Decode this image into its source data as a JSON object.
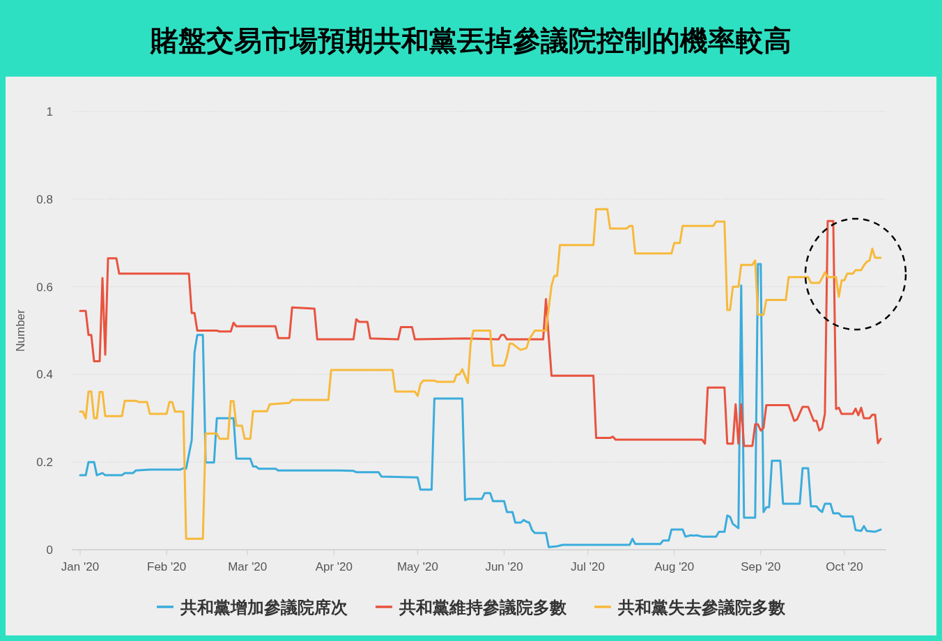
{
  "chart_data": {
    "type": "line",
    "title": "賭盤交易市場預期共和黨丟掉參議院控制的機率較高",
    "ylabel": "Number",
    "xlim": [
      "2019-12-29",
      "2020-10-16"
    ],
    "xticks": [
      {
        "value": "2020-01-01",
        "label": "Jan '20"
      },
      {
        "value": "2020-02-01",
        "label": "Feb '20"
      },
      {
        "value": "2020-03-01",
        "label": "Mar '20"
      },
      {
        "value": "2020-04-01",
        "label": "Apr '20"
      },
      {
        "value": "2020-05-01",
        "label": "May '20"
      },
      {
        "value": "2020-06-01",
        "label": "Jun '20"
      },
      {
        "value": "2020-07-01",
        "label": "Jul '20"
      },
      {
        "value": "2020-08-01",
        "label": "Aug '20"
      },
      {
        "value": "2020-09-01",
        "label": "Sep '20"
      },
      {
        "value": "2020-10-01",
        "label": "Oct '20"
      }
    ],
    "ylim": [
      0,
      1
    ],
    "yticks": [
      0,
      0.2,
      0.4,
      0.6,
      0.8,
      1
    ],
    "grid": "y",
    "legend": "bottom",
    "marker": "none",
    "line_style": "solid",
    "series": [
      {
        "name": "共和黨增加參議院席次",
        "color": "#3aacdc",
        "x": [
          "2020-01-01",
          "2020-01-03",
          "2020-01-04",
          "2020-01-06",
          "2020-01-07",
          "2020-01-09",
          "2020-01-10",
          "2020-01-16",
          "2020-01-17",
          "2020-01-20",
          "2020-01-21",
          "2020-01-26",
          "2020-02-06",
          "2020-02-07",
          "2020-02-08",
          "2020-02-10",
          "2020-02-11",
          "2020-02-12",
          "2020-02-14",
          "2020-02-15",
          "2020-02-18",
          "2020-02-19",
          "2020-02-25",
          "2020-02-26",
          "2020-03-02",
          "2020-03-03",
          "2020-03-04",
          "2020-03-05",
          "2020-03-11",
          "2020-03-12",
          "2020-04-03",
          "2020-04-08",
          "2020-04-09",
          "2020-04-17",
          "2020-04-18",
          "2020-05-01",
          "2020-05-02",
          "2020-05-06",
          "2020-05-07",
          "2020-05-17",
          "2020-05-18",
          "2020-05-19",
          "2020-05-24",
          "2020-05-25",
          "2020-05-27",
          "2020-05-28",
          "2020-06-01",
          "2020-06-02",
          "2020-06-04",
          "2020-06-05",
          "2020-06-07",
          "2020-06-08",
          "2020-06-09",
          "2020-06-10",
          "2020-06-11",
          "2020-06-12",
          "2020-06-16",
          "2020-06-17",
          "2020-06-20",
          "2020-06-22",
          "2020-07-16",
          "2020-07-17",
          "2020-07-18",
          "2020-07-27",
          "2020-07-28",
          "2020-07-30",
          "2020-07-31",
          "2020-08-04",
          "2020-08-05",
          "2020-08-07",
          "2020-08-08",
          "2020-08-09",
          "2020-08-11",
          "2020-08-16",
          "2020-08-17",
          "2020-08-19",
          "2020-08-20",
          "2020-08-21",
          "2020-08-22",
          "2020-08-24",
          "2020-08-25",
          "2020-08-26",
          "2020-08-30",
          "2020-08-31",
          "2020-09-01",
          "2020-09-02",
          "2020-09-03",
          "2020-09-04",
          "2020-09-05",
          "2020-09-08",
          "2020-09-09",
          "2020-09-15",
          "2020-09-16",
          "2020-09-18",
          "2020-09-19",
          "2020-09-21",
          "2020-09-22",
          "2020-09-23",
          "2020-09-24",
          "2020-09-26",
          "2020-09-27",
          "2020-09-29",
          "2020-09-30",
          "2020-10-04",
          "2020-10-05",
          "2020-10-07",
          "2020-10-08",
          "2020-10-09",
          "2020-10-12",
          "2020-10-14"
        ],
        "values": [
          0.17,
          0.17,
          0.2,
          0.2,
          0.17,
          0.175,
          0.17,
          0.17,
          0.175,
          0.175,
          0.181,
          0.183,
          0.183,
          0.186,
          0.185,
          0.25,
          0.45,
          0.49,
          0.49,
          0.199,
          0.199,
          0.3,
          0.3,
          0.208,
          0.208,
          0.19,
          0.19,
          0.185,
          0.185,
          0.181,
          0.181,
          0.18,
          0.177,
          0.177,
          0.167,
          0.165,
          0.137,
          0.137,
          0.345,
          0.345,
          0.113,
          0.116,
          0.116,
          0.129,
          0.129,
          0.111,
          0.111,
          0.086,
          0.086,
          0.062,
          0.062,
          0.068,
          0.064,
          0.062,
          0.045,
          0.038,
          0.038,
          0.006,
          0.008,
          0.011,
          0.011,
          0.025,
          0.013,
          0.013,
          0.021,
          0.021,
          0.046,
          0.046,
          0.03,
          0.033,
          0.032,
          0.033,
          0.03,
          0.03,
          0.041,
          0.041,
          0.078,
          0.075,
          0.059,
          0.049,
          0.603,
          0.073,
          0.073,
          0.652,
          0.652,
          0.086,
          0.097,
          0.097,
          0.203,
          0.203,
          0.105,
          0.105,
          0.186,
          0.186,
          0.099,
          0.099,
          0.091,
          0.086,
          0.105,
          0.105,
          0.083,
          0.083,
          0.076,
          0.076,
          0.045,
          0.043,
          0.054,
          0.043,
          0.041,
          0.046
        ]
      },
      {
        "name": "共和黨維持參議院多數",
        "color": "#e8533f",
        "x": [
          "2020-01-01",
          "2020-01-03",
          "2020-01-04",
          "2020-01-05",
          "2020-01-06",
          "2020-01-08",
          "2020-01-09",
          "2020-01-10",
          "2020-01-11",
          "2020-01-14",
          "2020-01-15",
          "2020-02-09",
          "2020-02-10",
          "2020-02-11",
          "2020-02-12",
          "2020-02-19",
          "2020-02-20",
          "2020-02-24",
          "2020-02-25",
          "2020-02-26",
          "2020-03-11",
          "2020-03-12",
          "2020-03-16",
          "2020-03-17",
          "2020-03-25",
          "2020-03-26",
          "2020-04-08",
          "2020-04-09",
          "2020-04-10",
          "2020-04-13",
          "2020-04-14",
          "2020-04-24",
          "2020-04-25",
          "2020-04-29",
          "2020-04-30",
          "2020-05-18",
          "2020-05-30",
          "2020-05-31",
          "2020-06-01",
          "2020-06-02",
          "2020-06-15",
          "2020-06-16",
          "2020-06-18",
          "2020-07-03",
          "2020-07-04",
          "2020-07-09",
          "2020-07-10",
          "2020-07-11",
          "2020-08-11",
          "2020-08-12",
          "2020-08-13",
          "2020-08-19",
          "2020-08-20",
          "2020-08-22",
          "2020-08-23",
          "2020-08-24",
          "2020-08-25",
          "2020-08-26",
          "2020-08-29",
          "2020-08-30",
          "2020-08-31",
          "2020-09-01",
          "2020-09-02",
          "2020-09-03",
          "2020-09-11",
          "2020-09-13",
          "2020-09-14",
          "2020-09-16",
          "2020-09-18",
          "2020-09-20",
          "2020-09-21",
          "2020-09-22",
          "2020-09-23",
          "2020-09-24",
          "2020-09-25",
          "2020-09-27",
          "2020-09-28",
          "2020-09-29",
          "2020-09-30",
          "2020-10-04",
          "2020-10-05",
          "2020-10-06",
          "2020-10-07",
          "2020-10-08",
          "2020-10-10",
          "2020-10-11",
          "2020-10-12",
          "2020-10-13",
          "2020-10-14"
        ],
        "values": [
          0.545,
          0.545,
          0.49,
          0.49,
          0.43,
          0.43,
          0.62,
          0.445,
          0.665,
          0.665,
          0.63,
          0.63,
          0.54,
          0.54,
          0.5,
          0.5,
          0.498,
          0.498,
          0.518,
          0.51,
          0.51,
          0.483,
          0.483,
          0.553,
          0.55,
          0.48,
          0.48,
          0.526,
          0.52,
          0.52,
          0.482,
          0.48,
          0.508,
          0.508,
          0.48,
          0.482,
          0.48,
          0.49,
          0.49,
          0.48,
          0.48,
          0.572,
          0.397,
          0.397,
          0.255,
          0.255,
          0.258,
          0.251,
          0.251,
          0.242,
          0.37,
          0.37,
          0.242,
          0.242,
          0.332,
          0.242,
          0.332,
          0.237,
          0.237,
          0.286,
          0.286,
          0.272,
          0.278,
          0.33,
          0.33,
          0.294,
          0.297,
          0.326,
          0.326,
          0.294,
          0.294,
          0.272,
          0.277,
          0.31,
          0.75,
          0.75,
          0.321,
          0.324,
          0.31,
          0.31,
          0.322,
          0.307,
          0.324,
          0.3,
          0.3,
          0.308,
          0.308,
          0.243,
          0.253
        ]
      },
      {
        "name": "共和黨失去參議院多數",
        "color": "#f7b93b",
        "x": [
          "2020-01-01",
          "2020-01-02",
          "2020-01-03",
          "2020-01-04",
          "2020-01-05",
          "2020-01-06",
          "2020-01-07",
          "2020-01-08",
          "2020-01-09",
          "2020-01-10",
          "2020-01-16",
          "2020-01-17",
          "2020-01-21",
          "2020-01-22",
          "2020-01-25",
          "2020-01-26",
          "2020-02-01",
          "2020-02-02",
          "2020-02-03",
          "2020-02-04",
          "2020-02-07",
          "2020-02-08",
          "2020-02-14",
          "2020-02-15",
          "2020-02-19",
          "2020-02-20",
          "2020-02-23",
          "2020-02-24",
          "2020-02-25",
          "2020-02-26",
          "2020-02-28",
          "2020-02-29",
          "2020-03-02",
          "2020-03-03",
          "2020-03-08",
          "2020-03-09",
          "2020-03-16",
          "2020-03-17",
          "2020-03-30",
          "2020-03-31",
          "2020-04-22",
          "2020-04-23",
          "2020-04-30",
          "2020-05-01",
          "2020-05-02",
          "2020-05-03",
          "2020-05-07",
          "2020-05-08",
          "2020-05-14",
          "2020-05-15",
          "2020-05-16",
          "2020-05-17",
          "2020-05-19",
          "2020-05-20",
          "2020-05-21",
          "2020-05-27",
          "2020-05-28",
          "2020-06-01",
          "2020-06-02",
          "2020-06-03",
          "2020-06-04",
          "2020-06-06",
          "2020-06-07",
          "2020-06-09",
          "2020-06-10",
          "2020-06-12",
          "2020-06-16",
          "2020-06-18",
          "2020-06-19",
          "2020-06-20",
          "2020-06-21",
          "2020-07-03",
          "2020-07-04",
          "2020-07-08",
          "2020-07-09",
          "2020-07-15",
          "2020-07-16",
          "2020-07-17",
          "2020-07-18",
          "2020-07-31",
          "2020-08-01",
          "2020-08-03",
          "2020-08-04",
          "2020-08-15",
          "2020-08-16",
          "2020-08-19",
          "2020-08-20",
          "2020-08-21",
          "2020-08-22",
          "2020-08-24",
          "2020-08-25",
          "2020-08-29",
          "2020-08-30",
          "2020-08-31",
          "2020-09-02",
          "2020-09-03",
          "2020-09-10",
          "2020-09-11",
          "2020-09-18",
          "2020-09-19",
          "2020-09-22",
          "2020-09-23",
          "2020-09-24",
          "2020-09-25",
          "2020-09-28",
          "2020-09-29",
          "2020-09-30",
          "2020-10-01",
          "2020-10-02",
          "2020-10-04",
          "2020-10-05",
          "2020-10-07",
          "2020-10-08",
          "2020-10-09",
          "2020-10-10",
          "2020-10-11",
          "2020-10-12",
          "2020-10-14"
        ],
        "values": [
          0.315,
          0.315,
          0.3,
          0.361,
          0.361,
          0.3,
          0.3,
          0.36,
          0.36,
          0.305,
          0.305,
          0.34,
          0.34,
          0.337,
          0.337,
          0.31,
          0.31,
          0.337,
          0.337,
          0.315,
          0.315,
          0.025,
          0.025,
          0.265,
          0.265,
          0.253,
          0.253,
          0.339,
          0.339,
          0.283,
          0.283,
          0.253,
          0.253,
          0.316,
          0.316,
          0.332,
          0.335,
          0.342,
          0.342,
          0.41,
          0.41,
          0.361,
          0.361,
          0.351,
          0.378,
          0.386,
          0.386,
          0.383,
          0.383,
          0.4,
          0.4,
          0.412,
          0.38,
          0.471,
          0.5,
          0.5,
          0.42,
          0.42,
          0.44,
          0.47,
          0.47,
          0.46,
          0.456,
          0.46,
          0.48,
          0.5,
          0.5,
          0.603,
          0.625,
          0.625,
          0.695,
          0.695,
          0.777,
          0.777,
          0.733,
          0.733,
          0.739,
          0.739,
          0.676,
          0.676,
          0.7,
          0.7,
          0.739,
          0.739,
          0.749,
          0.749,
          0.547,
          0.547,
          0.6,
          0.6,
          0.65,
          0.65,
          0.66,
          0.536,
          0.536,
          0.57,
          0.57,
          0.622,
          0.622,
          0.609,
          0.609,
          0.62,
          0.633,
          0.622,
          0.622,
          0.577,
          0.615,
          0.615,
          0.63,
          0.63,
          0.638,
          0.638,
          0.649,
          0.657,
          0.66,
          0.687,
          0.666,
          0.666
        ]
      }
    ]
  }
}
